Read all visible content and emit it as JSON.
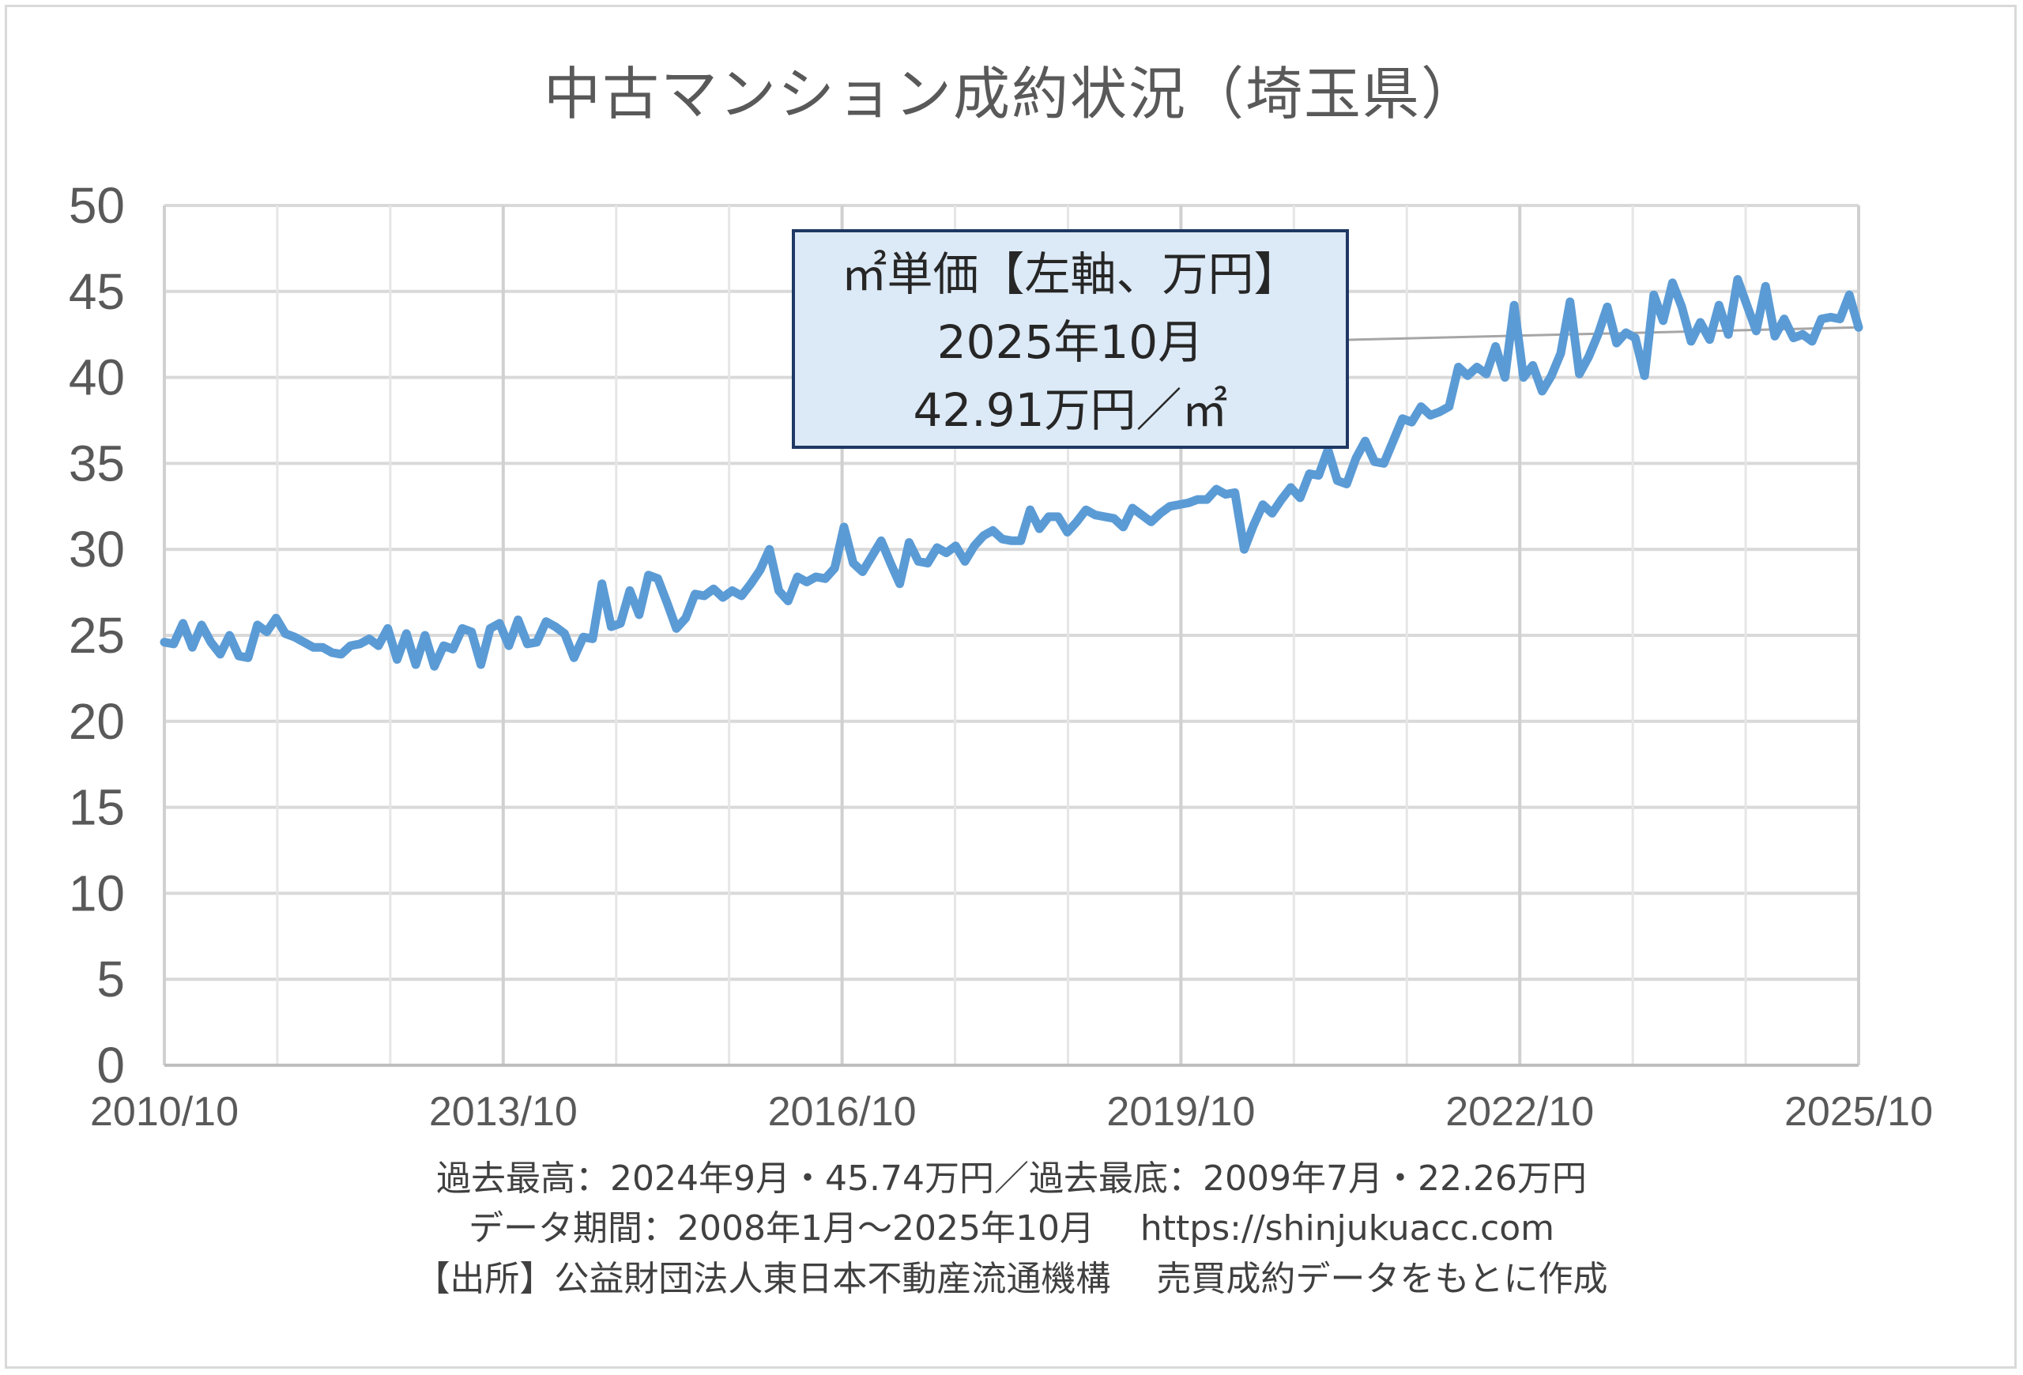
{
  "chart_data": {
    "type": "line",
    "title": "中古マンション成約状況（埼玉県）",
    "ylim": [
      0,
      50
    ],
    "y_ticks": [
      "0",
      "5",
      "10",
      "15",
      "20",
      "25",
      "30",
      "35",
      "40",
      "45",
      "50"
    ],
    "x_ticks": [
      "2010/10",
      "2013/10",
      "2016/10",
      "2019/10",
      "2022/10",
      "2025/10"
    ],
    "x_range": [
      "2010/10",
      "2025/10"
    ],
    "grid": true,
    "line_color": "#5b9bd5",
    "annotation": {
      "line1": "㎡単価【左軸、万円】",
      "line2": "2025年10月",
      "line3": "42.91万円／㎡"
    },
    "series": [
      {
        "values": [
          24.6,
          24.5,
          25.7,
          24.3,
          25.6,
          24.6,
          23.9,
          25.0,
          23.8,
          23.7,
          25.6,
          25.2,
          26.0,
          25.1,
          24.9,
          24.6,
          24.3,
          24.3,
          24.0,
          23.9,
          24.4,
          24.5,
          24.8,
          24.4,
          25.4,
          23.6,
          25.1,
          23.3,
          25.0,
          23.2,
          24.4,
          24.2,
          25.4,
          25.2,
          23.3,
          25.4,
          25.7,
          24.4,
          25.9,
          24.5,
          24.6,
          25.8,
          25.5,
          25.1,
          23.7,
          24.9,
          24.8,
          28.0,
          25.5,
          25.7,
          27.6,
          26.2,
          28.5,
          28.3,
          26.9,
          25.4,
          26.0,
          27.4,
          27.3,
          27.7,
          27.2,
          27.6,
          27.3,
          28.0,
          28.8,
          30.0,
          27.6,
          27.0,
          28.4,
          28.1,
          28.4,
          28.3,
          28.9,
          31.3,
          29.2,
          28.7,
          29.6,
          30.5,
          29.2,
          28.0,
          30.4,
          29.3,
          29.2,
          30.1,
          29.8,
          30.2,
          29.3,
          30.2,
          30.8,
          31.1,
          30.6,
          30.5,
          30.5,
          32.3,
          31.2,
          31.9,
          31.9,
          31.0,
          31.6,
          32.3,
          32.0,
          31.9,
          31.8,
          31.3,
          32.4,
          32.0,
          31.6,
          32.1,
          32.5,
          32.6,
          32.7,
          32.9,
          32.9,
          33.5,
          33.2,
          33.3,
          30.0,
          31.4,
          32.6,
          32.1,
          32.9,
          33.6,
          33.0,
          34.4,
          34.3,
          35.8,
          34.0,
          33.8,
          35.3,
          36.3,
          35.1,
          35.0,
          36.3,
          37.6,
          37.4,
          38.3,
          37.8,
          38.0,
          38.3,
          40.6,
          40.1,
          40.6,
          40.2,
          41.8,
          40.0,
          44.2,
          40.0,
          40.7,
          39.2,
          40.1,
          41.4,
          44.4,
          40.2,
          41.2,
          42.5,
          44.1,
          42.0,
          42.6,
          42.3,
          40.1,
          44.8,
          43.3,
          45.5,
          44.1,
          42.1,
          43.2,
          42.2,
          44.2,
          42.5,
          45.7,
          44.2,
          42.7,
          45.3,
          42.4,
          43.4,
          42.3,
          42.5,
          42.1,
          43.4,
          43.5,
          43.4,
          44.8,
          42.91
        ]
      }
    ]
  },
  "footnotes": {
    "line1": "過去最高：2024年9月・45.74万円／過去最底：2009年7月・22.26万円",
    "line2": "データ期間：2008年1月～2025年10月　 https://shinjukuacc.com",
    "line3": "【出所】公益財団法人東日本不動産流通機構　 売買成約データをもとに作成"
  }
}
